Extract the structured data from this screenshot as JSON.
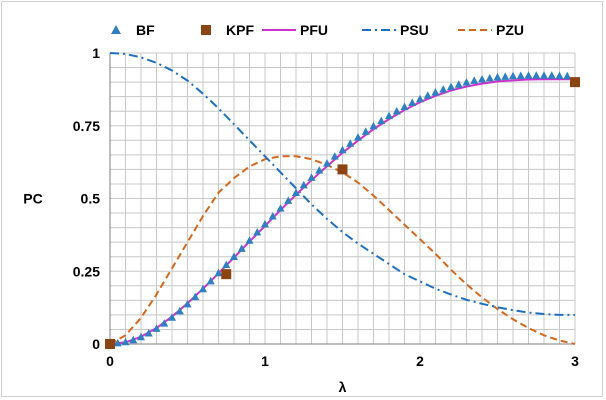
{
  "chart_data": {
    "type": "line",
    "xlabel": "λ",
    "ylabel": "PC",
    "xlim": [
      0,
      3
    ],
    "ylim": [
      0,
      1
    ],
    "x_ticks": [
      {
        "v": 0,
        "label": "0"
      },
      {
        "v": 1,
        "label": "1"
      },
      {
        "v": 2,
        "label": "2"
      },
      {
        "v": 3,
        "label": "3"
      }
    ],
    "y_ticks": [
      {
        "v": 0,
        "label": "0"
      },
      {
        "v": 0.25,
        "label": "0.25"
      },
      {
        "v": 0.5,
        "label": "0.5"
      },
      {
        "v": 0.75,
        "label": "0.75"
      },
      {
        "v": 1,
        "label": "1"
      }
    ],
    "grid": {
      "x_step": 0.1,
      "y_step": 0.05
    },
    "legend_position": "top",
    "series": [
      {
        "name": "BF",
        "style": "triangle-markers",
        "color": "#2f7fc1",
        "x": [
          0,
          0.05,
          0.1,
          0.15,
          0.2,
          0.25,
          0.3,
          0.35,
          0.4,
          0.45,
          0.5,
          0.55,
          0.6,
          0.65,
          0.7,
          0.75,
          0.8,
          0.85,
          0.9,
          0.95,
          1,
          1.05,
          1.1,
          1.15,
          1.2,
          1.25,
          1.3,
          1.35,
          1.4,
          1.45,
          1.5,
          1.55,
          1.6,
          1.65,
          1.7,
          1.75,
          1.8,
          1.85,
          1.9,
          1.95,
          2,
          2.05,
          2.1,
          2.15,
          2.2,
          2.25,
          2.3,
          2.35,
          2.4,
          2.45,
          2.5,
          2.55,
          2.6,
          2.65,
          2.7,
          2.75,
          2.8,
          2.85,
          2.9,
          2.95
        ],
        "y": [
          0,
          0.002,
          0.006,
          0.013,
          0.023,
          0.036,
          0.052,
          0.07,
          0.09,
          0.112,
          0.136,
          0.161,
          0.188,
          0.215,
          0.243,
          0.271,
          0.299,
          0.327,
          0.355,
          0.383,
          0.411,
          0.438,
          0.465,
          0.492,
          0.519,
          0.545,
          0.571,
          0.596,
          0.62,
          0.644,
          0.666,
          0.688,
          0.709,
          0.729,
          0.748,
          0.766,
          0.783,
          0.799,
          0.814,
          0.828,
          0.841,
          0.853,
          0.864,
          0.874,
          0.883,
          0.891,
          0.898,
          0.904,
          0.909,
          0.913,
          0.916,
          0.918,
          0.92,
          0.921,
          0.922,
          0.922,
          0.922,
          0.922,
          0.921,
          0.92
        ]
      },
      {
        "name": "KPF",
        "style": "square-markers",
        "color": "#8b4513",
        "x": [
          0,
          0.75,
          1.5,
          3
        ],
        "y": [
          0,
          0.24,
          0.6,
          0.9
        ]
      },
      {
        "name": "PFU",
        "style": "solid",
        "color": "#cc33cc",
        "x": [
          0,
          0.1,
          0.2,
          0.3,
          0.4,
          0.5,
          0.6,
          0.7,
          0.8,
          0.9,
          1,
          1.1,
          1.2,
          1.3,
          1.4,
          1.5,
          1.6,
          1.7,
          1.8,
          1.9,
          2,
          2.1,
          2.2,
          2.3,
          2.4,
          2.5,
          2.6,
          2.7,
          2.8,
          2.9,
          3
        ],
        "y": [
          0,
          0.006,
          0.025,
          0.055,
          0.094,
          0.14,
          0.19,
          0.243,
          0.297,
          0.352,
          0.406,
          0.46,
          0.513,
          0.563,
          0.611,
          0.657,
          0.699,
          0.738,
          0.773,
          0.804,
          0.831,
          0.853,
          0.871,
          0.885,
          0.895,
          0.902,
          0.906,
          0.909,
          0.91,
          0.91,
          0.91
        ]
      },
      {
        "name": "PSU",
        "style": "dash-dot",
        "color": "#1f6fbf",
        "x": [
          0,
          0.1,
          0.2,
          0.3,
          0.4,
          0.5,
          0.6,
          0.7,
          0.8,
          0.9,
          1,
          1.1,
          1.2,
          1.3,
          1.4,
          1.5,
          1.6,
          1.7,
          1.8,
          1.9,
          2,
          2.1,
          2.2,
          2.3,
          2.4,
          2.5,
          2.6,
          2.7,
          2.8,
          2.9,
          3
        ],
        "y": [
          1,
          0.997,
          0.985,
          0.966,
          0.94,
          0.905,
          0.86,
          0.81,
          0.755,
          0.7,
          0.645,
          0.59,
          0.535,
          0.48,
          0.43,
          0.385,
          0.345,
          0.31,
          0.275,
          0.24,
          0.215,
          0.19,
          0.17,
          0.152,
          0.138,
          0.126,
          0.116,
          0.108,
          0.103,
          0.1,
          0.1
        ]
      },
      {
        "name": "PZU",
        "style": "dashed",
        "color": "#d2691e",
        "x": [
          0,
          0.1,
          0.2,
          0.3,
          0.4,
          0.5,
          0.6,
          0.7,
          0.8,
          0.9,
          1,
          1.1,
          1.2,
          1.3,
          1.4,
          1.5,
          1.6,
          1.7,
          1.8,
          1.9,
          2,
          2.1,
          2.2,
          2.3,
          2.4,
          2.5,
          2.6,
          2.7,
          2.8,
          2.9,
          3
        ],
        "y": [
          0,
          0.03,
          0.09,
          0.17,
          0.26,
          0.35,
          0.44,
          0.52,
          0.57,
          0.61,
          0.635,
          0.645,
          0.645,
          0.635,
          0.615,
          0.59,
          0.555,
          0.51,
          0.46,
          0.41,
          0.36,
          0.31,
          0.255,
          0.205,
          0.16,
          0.12,
          0.085,
          0.055,
          0.03,
          0.012,
          0
        ]
      }
    ]
  }
}
